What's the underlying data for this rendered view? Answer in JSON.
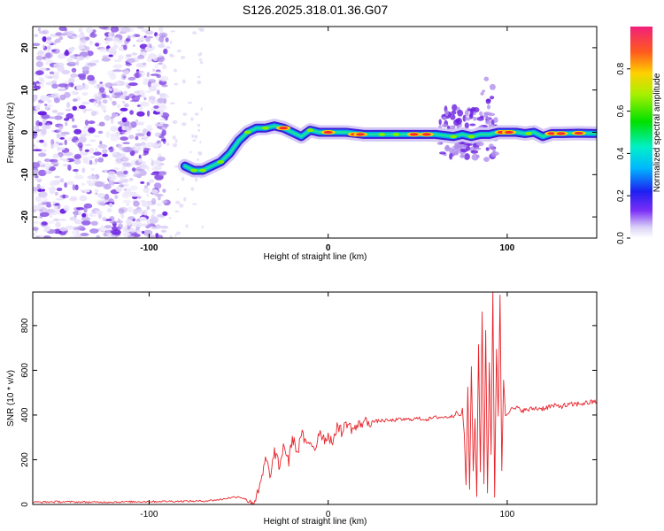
{
  "title": "S126.2025.318.01.36.G07",
  "chart_data": [
    {
      "type": "heatmap",
      "name": "spectrogram",
      "xlabel": "Height of straight line (km)",
      "ylabel": "Frequency (Hz)",
      "xlim": [
        -165,
        150
      ],
      "ylim": [
        -25,
        25
      ],
      "x_ticks": [
        -100,
        0,
        100
      ],
      "x_tick_labels": [
        "-100",
        "0",
        "100"
      ],
      "y_ticks": [
        20,
        10,
        0,
        -10,
        -20
      ],
      "y_tick_labels": [
        "20",
        "10",
        "0",
        "-10",
        "-20"
      ],
      "ridge": {
        "x": [
          -80,
          -75,
          -70,
          -65,
          -60,
          -55,
          -50,
          -45,
          -40,
          -35,
          -30,
          -25,
          -20,
          -15,
          -10,
          -5,
          0,
          10,
          20,
          30,
          40,
          50,
          60,
          70,
          75,
          80,
          85,
          90,
          95,
          100,
          105,
          110,
          115,
          120,
          125,
          130,
          140,
          150
        ],
        "y": [
          -8,
          -9,
          -9,
          -8,
          -7,
          -5,
          -2,
          0,
          1,
          1,
          1.5,
          1,
          0,
          -1,
          0.5,
          0,
          0,
          0,
          -0.5,
          -0.5,
          -0.5,
          -0.5,
          -0.5,
          -1,
          -0.5,
          -1,
          -0.5,
          -0.5,
          0,
          0,
          0,
          -0.3,
          0,
          -1,
          -0.3,
          -0.3,
          -0.2,
          -0.3
        ]
      },
      "colorbar": {
        "label": "Normalized spectral amplitude",
        "range": [
          0,
          1
        ],
        "ticks": [
          0.0,
          0.2,
          0.4,
          0.6,
          0.8
        ],
        "tick_labels": [
          "0.0",
          "0.2",
          "0.4",
          "0.6",
          "0.8"
        ]
      }
    },
    {
      "type": "line",
      "name": "snr",
      "xlabel": "Height of straight line (km)",
      "ylabel": "SNR (10 * v/v)",
      "xlim": [
        -165,
        150
      ],
      "ylim": [
        0,
        950
      ],
      "x_ticks": [
        -100,
        0,
        100
      ],
      "x_tick_labels": [
        "-100",
        "0",
        "100"
      ],
      "y_ticks": [
        0,
        200,
        400,
        600,
        800
      ],
      "y_tick_labels": [
        "0",
        "200",
        "400",
        "600",
        "800"
      ],
      "series": [
        {
          "name": "SNR",
          "color": "#e8232a",
          "x": [
            -165,
            -150,
            -130,
            -110,
            -90,
            -70,
            -60,
            -55,
            -50,
            -45,
            -42,
            -40,
            -38,
            -35,
            -32,
            -30,
            -27,
            -25,
            -22,
            -20,
            -17,
            -15,
            -12,
            -10,
            -7,
            -5,
            -2,
            0,
            3,
            5,
            8,
            10,
            13,
            15,
            18,
            20,
            25,
            30,
            35,
            40,
            45,
            50,
            55,
            60,
            65,
            70,
            72,
            74,
            75,
            76,
            77,
            78,
            79,
            80,
            81,
            82,
            83,
            84,
            85,
            86,
            87,
            88,
            89,
            90,
            91,
            92,
            93,
            94,
            95,
            96,
            97,
            98,
            99,
            100,
            101,
            105,
            110,
            115,
            120,
            125,
            130,
            135,
            140,
            145,
            150
          ],
          "y": [
            10,
            12,
            10,
            12,
            14,
            15,
            22,
            30,
            35,
            20,
            10,
            30,
            80,
            200,
            130,
            240,
            160,
            270,
            190,
            300,
            230,
            320,
            260,
            280,
            250,
            330,
            290,
            310,
            270,
            360,
            320,
            370,
            340,
            340,
            360,
            370,
            370,
            375,
            375,
            380,
            380,
            385,
            380,
            390,
            390,
            395,
            420,
            390,
            430,
            310,
            90,
            520,
            60,
            620,
            150,
            380,
            40,
            720,
            150,
            860,
            90,
            780,
            50,
            640,
            220,
            950,
            30,
            700,
            400,
            930,
            150,
            560,
            400,
            410,
            420,
            430,
            420,
            430,
            430,
            440,
            440,
            445,
            450,
            455,
            460
          ]
        }
      ]
    }
  ]
}
